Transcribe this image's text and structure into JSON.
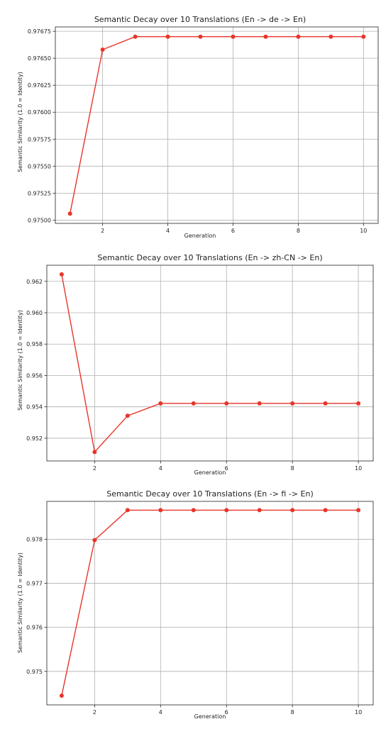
{
  "chart_data": [
    {
      "type": "line",
      "title": "Semantic Decay over 10 Translations (En -> de -> En)",
      "xlabel": "Generation",
      "ylabel": "Semantic Similarity (1.0 = Identity)",
      "x": [
        1,
        2,
        3,
        4,
        5,
        6,
        7,
        8,
        9,
        10
      ],
      "series": [
        {
          "values": [
            0.97506,
            0.97658,
            0.9767,
            0.9767,
            0.9767,
            0.9767,
            0.9767,
            0.9767,
            0.9767,
            0.9767
          ]
        }
      ],
      "xlim": [
        0.55,
        10.45
      ],
      "ylim": [
        0.97497,
        0.97679
      ],
      "xticks": [
        2,
        4,
        6,
        8,
        10
      ],
      "xtick_labels": [
        "2",
        "4",
        "6",
        "8",
        "10"
      ],
      "yticks": [
        0.975,
        0.97525,
        0.9755,
        0.97575,
        0.976,
        0.97625,
        0.9765,
        0.97675
      ],
      "ytick_labels": [
        "0.97500",
        "0.97525",
        "0.97550",
        "0.97575",
        "0.97600",
        "0.97625",
        "0.97650",
        "0.97675"
      ],
      "grid": true,
      "color": "#e8352a"
    },
    {
      "type": "line",
      "title": "Semantic Decay over 10 Translations (En -> zh-CN -> En)",
      "xlabel": "Generation",
      "ylabel": "Semantic Similarity (1.0 = Identity)",
      "x": [
        1,
        2,
        3,
        4,
        5,
        6,
        7,
        8,
        9,
        10
      ],
      "series": [
        {
          "values": [
            0.96245,
            0.95112,
            0.95343,
            0.95422,
            0.95422,
            0.95422,
            0.95422,
            0.95422,
            0.95422,
            0.95422
          ]
        }
      ],
      "xlim": [
        0.55,
        10.45
      ],
      "ylim": [
        0.95055,
        0.96303
      ],
      "xticks": [
        2,
        4,
        6,
        8,
        10
      ],
      "xtick_labels": [
        "2",
        "4",
        "6",
        "8",
        "10"
      ],
      "yticks": [
        0.952,
        0.954,
        0.956,
        0.958,
        0.96,
        0.962
      ],
      "ytick_labels": [
        "0.952",
        "0.954",
        "0.956",
        "0.958",
        "0.960",
        "0.962"
      ],
      "grid": true,
      "color": "#e8352a"
    },
    {
      "type": "line",
      "title": "Semantic Decay over 10 Translations (En -> fi -> En)",
      "xlabel": "Generation",
      "ylabel": "Semantic Similarity (1.0 = Identity)",
      "x": [
        1,
        2,
        3,
        4,
        5,
        6,
        7,
        8,
        9,
        10
      ],
      "series": [
        {
          "values": [
            0.97445,
            0.97798,
            0.97866,
            0.97866,
            0.97866,
            0.97866,
            0.97866,
            0.97866,
            0.97866,
            0.97866
          ]
        }
      ],
      "xlim": [
        0.55,
        10.45
      ],
      "ylim": [
        0.97424,
        0.97886
      ],
      "xticks": [
        2,
        4,
        6,
        8,
        10
      ],
      "xtick_labels": [
        "2",
        "4",
        "6",
        "8",
        "10"
      ],
      "yticks": [
        0.975,
        0.976,
        0.977,
        0.978
      ],
      "ytick_labels": [
        "0.975",
        "0.976",
        "0.977",
        "0.978"
      ],
      "grid": true,
      "color": "#e8352a"
    }
  ]
}
